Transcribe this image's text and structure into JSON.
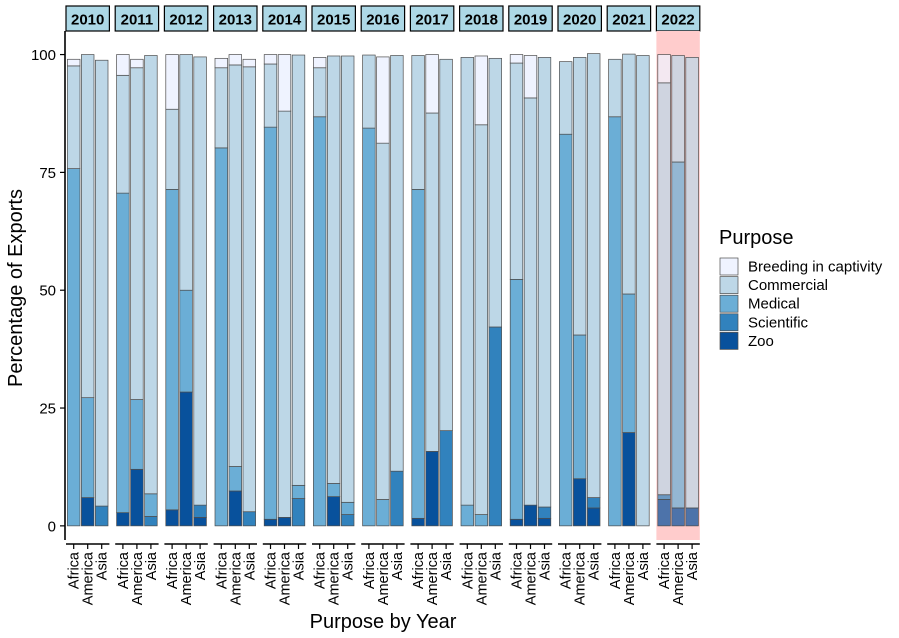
{
  "chart_data": {
    "type": "bar",
    "stacked": true,
    "faceted_by": "year",
    "ylabel": "Percentage of Exports",
    "xlabel": "Purpose by Year",
    "ylim": [
      -3,
      105
    ],
    "yticks": [
      0,
      25,
      50,
      75,
      100
    ],
    "categories": [
      "Africa",
      "America",
      "Asia"
    ],
    "legend": {
      "title": "Purpose",
      "position": "right",
      "entries": [
        {
          "name": "Breeding in captivity",
          "color": "#eff3ff"
        },
        {
          "name": "Commercial",
          "color": "#bdd7e7"
        },
        {
          "name": "Medical",
          "color": "#6baed6"
        },
        {
          "name": "Scientific",
          "color": "#3182bd"
        },
        {
          "name": "Zoo",
          "color": "#08519c"
        }
      ]
    },
    "highlight": {
      "year": "2022",
      "color": "#ffcccc"
    },
    "series_order": [
      "Zoo",
      "Scientific",
      "Medical",
      "Commercial",
      "Breeding in captivity"
    ],
    "panels": [
      {
        "year": "2010",
        "bars": [
          {
            "region": "Africa",
            "segments": [
              0,
              0,
              75.8,
              21.8,
              1.4
            ]
          },
          {
            "region": "America",
            "segments": [
              6.0,
              0,
              21.2,
              72.8,
              0
            ]
          },
          {
            "region": "Asia",
            "segments": [
              0,
              4.2,
              0,
              94.6,
              0
            ]
          }
        ]
      },
      {
        "year": "2011",
        "bars": [
          {
            "region": "Africa",
            "segments": [
              2.8,
              0,
              67.8,
              25.0,
              4.4
            ]
          },
          {
            "region": "America",
            "segments": [
              12.0,
              0,
              14.8,
              70.4,
              1.8
            ]
          },
          {
            "region": "Asia",
            "segments": [
              0,
              2.0,
              4.8,
              93.0,
              0
            ]
          }
        ]
      },
      {
        "year": "2012",
        "bars": [
          {
            "region": "Africa",
            "segments": [
              3.4,
              0,
              68.0,
              17.0,
              11.6
            ]
          },
          {
            "region": "America",
            "segments": [
              28.4,
              0,
              21.6,
              50.0,
              0
            ]
          },
          {
            "region": "Asia",
            "segments": [
              1.8,
              2.6,
              0,
              95.1,
              0
            ]
          }
        ]
      },
      {
        "year": "2013",
        "bars": [
          {
            "region": "Africa",
            "segments": [
              0,
              0,
              80.2,
              17.0,
              2.0
            ]
          },
          {
            "region": "America",
            "segments": [
              7.4,
              0,
              5.2,
              85.2,
              2.2
            ]
          },
          {
            "region": "Asia",
            "segments": [
              0,
              3.0,
              0,
              94.4,
              1.6
            ]
          }
        ]
      },
      {
        "year": "2014",
        "bars": [
          {
            "region": "Africa",
            "segments": [
              1.4,
              0,
              83.2,
              13.4,
              2.0
            ]
          },
          {
            "region": "America",
            "segments": [
              1.8,
              0,
              0,
              86.2,
              12.0
            ]
          },
          {
            "region": "Asia",
            "segments": [
              0,
              5.8,
              2.8,
              91.3,
              0
            ]
          }
        ]
      },
      {
        "year": "2015",
        "bars": [
          {
            "region": "Africa",
            "segments": [
              0,
              0,
              86.8,
              10.4,
              2.2
            ]
          },
          {
            "region": "America",
            "segments": [
              6.2,
              0,
              2.8,
              90.7,
              0
            ]
          },
          {
            "region": "Asia",
            "segments": [
              0,
              2.4,
              2.6,
              94.7,
              0
            ]
          }
        ]
      },
      {
        "year": "2016",
        "bars": [
          {
            "region": "Africa",
            "segments": [
              0,
              0,
              84.4,
              15.5,
              0
            ]
          },
          {
            "region": "America",
            "segments": [
              0,
              0,
              5.6,
              75.6,
              18.3
            ]
          },
          {
            "region": "Asia",
            "segments": [
              0,
              11.6,
              0,
              88.2,
              0
            ]
          }
        ]
      },
      {
        "year": "2017",
        "bars": [
          {
            "region": "Africa",
            "segments": [
              1.6,
              0,
              69.8,
              28.4,
              0
            ]
          },
          {
            "region": "America",
            "segments": [
              15.8,
              0,
              0,
              71.8,
              12.4
            ]
          },
          {
            "region": "Asia",
            "segments": [
              0,
              20.2,
              0,
              78.8,
              0
            ]
          }
        ]
      },
      {
        "year": "2018",
        "bars": [
          {
            "region": "Africa",
            "segments": [
              0,
              0,
              4.4,
              95.0,
              0
            ]
          },
          {
            "region": "America",
            "segments": [
              0,
              0,
              2.4,
              82.7,
              14.6
            ]
          },
          {
            "region": "Asia",
            "segments": [
              0,
              42.2,
              0,
              57.0,
              0
            ]
          }
        ]
      },
      {
        "year": "2019",
        "bars": [
          {
            "region": "Africa",
            "segments": [
              1.4,
              0,
              50.9,
              45.9,
              1.8
            ]
          },
          {
            "region": "America",
            "segments": [
              4.4,
              0,
              0,
              86.4,
              9.0
            ]
          },
          {
            "region": "Asia",
            "segments": [
              1.6,
              2.4,
              0,
              95.4,
              0
            ]
          }
        ]
      },
      {
        "year": "2020",
        "bars": [
          {
            "region": "Africa",
            "segments": [
              0,
              0,
              83.1,
              15.4,
              0
            ]
          },
          {
            "region": "America",
            "segments": [
              10.0,
              0,
              30.5,
              58.9,
              0
            ]
          },
          {
            "region": "Asia",
            "segments": [
              3.8,
              2.2,
              0,
              94.2,
              0
            ]
          }
        ]
      },
      {
        "year": "2021",
        "bars": [
          {
            "region": "Africa",
            "segments": [
              0,
              0,
              86.8,
              12.2,
              0
            ]
          },
          {
            "region": "America",
            "segments": [
              19.8,
              0,
              29.4,
              50.9,
              0
            ]
          },
          {
            "region": "Asia",
            "segments": [
              0,
              0,
              0,
              99.8,
              0
            ]
          }
        ]
      },
      {
        "year": "2022",
        "bars": [
          {
            "region": "Africa",
            "segments": [
              5.6,
              1.0,
              0,
              87.4,
              6.0
            ]
          },
          {
            "region": "America",
            "segments": [
              3.8,
              0,
              73.4,
              22.6,
              0
            ]
          },
          {
            "region": "Asia",
            "segments": [
              3.8,
              0,
              0,
              95.6,
              0
            ]
          }
        ]
      }
    ]
  }
}
